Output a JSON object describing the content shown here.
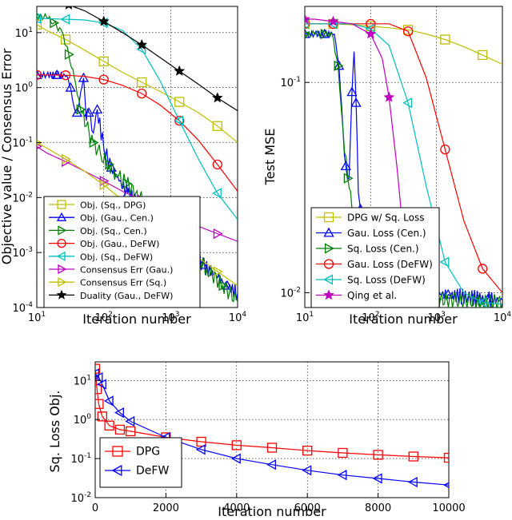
{
  "chart_data": [
    {
      "id": "objective",
      "type": "line",
      "xscale": "log",
      "yscale": "log",
      "xlim": [
        10,
        10000
      ],
      "ylim": [
        0.0001,
        30
      ],
      "xlabel": "Iteration number",
      "ylabel": "Objective value / Consensus Error",
      "xticks": [
        {
          "v": 10,
          "b": "10",
          "e": "1"
        },
        {
          "v": 100,
          "b": "10",
          "e": "2"
        },
        {
          "v": 1000,
          "b": "10",
          "e": "3"
        },
        {
          "v": 10000,
          "b": "10",
          "e": "4"
        }
      ],
      "yticks": [
        {
          "v": 0.0001,
          "b": "10",
          "e": "-4"
        },
        {
          "v": 0.001,
          "b": "10",
          "e": "-3"
        },
        {
          "v": 0.01,
          "b": "10",
          "e": "-2"
        },
        {
          "v": 0.1,
          "b": "10",
          "e": "-1"
        },
        {
          "v": 1,
          "b": "10",
          "e": "0"
        },
        {
          "v": 10,
          "b": "10",
          "e": "1"
        }
      ],
      "series": [
        {
          "name": "Obj. (Sq., DPG)",
          "color": "#bfbf00",
          "marker": "square",
          "x": [
            10,
            14,
            27,
            52,
            100,
            190,
            370,
            700,
            1350,
            2600,
            5000,
            10000
          ],
          "y": [
            14,
            11,
            7.5,
            4.8,
            3.0,
            1.9,
            1.25,
            0.85,
            0.55,
            0.35,
            0.2,
            0.1
          ]
        },
        {
          "name": "Obj. (Gau., Cen.)",
          "color": "#0000ff",
          "marker": "triangle-up",
          "noisy": true,
          "x": [
            10,
            14,
            20,
            28,
            32,
            36,
            40,
            45,
            50,
            55,
            60,
            70,
            80,
            100,
            130,
            170,
            230,
            300,
            400,
            550,
            750,
            1000,
            1500,
            2000,
            3000,
            5000,
            7000,
            10000
          ],
          "y": [
            1.7,
            1.7,
            1.7,
            1.65,
            1.0,
            0.45,
            0.35,
            0.8,
            1.5,
            0.25,
            0.35,
            0.15,
            0.4,
            0.08,
            0.035,
            0.02,
            0.012,
            0.008,
            0.006,
            0.004,
            0.003,
            0.002,
            0.0015,
            0.001,
            0.0006,
            0.00035,
            0.00025,
            0.00018
          ]
        },
        {
          "name": "Obj. (Sq., Cen.)",
          "color": "#007f00",
          "marker": "triangle-right",
          "noisy": true,
          "x": [
            10,
            14,
            18,
            24,
            30,
            38,
            45,
            55,
            70,
            90,
            120,
            160,
            220,
            300,
            420,
            600,
            900,
            1400,
            2200,
            3500,
            6000,
            10000
          ],
          "y": [
            20,
            19,
            15,
            10,
            4.0,
            1.2,
            0.4,
            0.2,
            0.1,
            0.06,
            0.04,
            0.025,
            0.018,
            0.012,
            0.008,
            0.005,
            0.003,
            0.0017,
            0.0009,
            0.0005,
            0.00025,
            0.00013
          ]
        },
        {
          "name": "Obj. (Gau., DeFW)",
          "color": "#ff0000",
          "marker": "circle",
          "x": [
            10,
            14,
            27,
            52,
            100,
            190,
            370,
            700,
            1350,
            2600,
            5000,
            10000
          ],
          "y": [
            1.7,
            1.7,
            1.68,
            1.6,
            1.4,
            1.1,
            0.78,
            0.48,
            0.25,
            0.11,
            0.04,
            0.013
          ]
        },
        {
          "name": "Obj. (Sq., DeFW)",
          "color": "#00bfbf",
          "marker": "triangle-left",
          "x": [
            10,
            14,
            27,
            52,
            100,
            190,
            370,
            700,
            1350,
            2600,
            5000,
            10000
          ],
          "y": [
            18,
            18,
            17.5,
            17,
            15,
            11,
            5.0,
            1.3,
            0.25,
            0.05,
            0.012,
            0.004
          ]
        },
        {
          "name": "Consensus Err (Gau.)",
          "color": "#bf00bf",
          "marker": "triangle-right",
          "x": [
            10,
            14,
            27,
            52,
            100,
            190,
            370,
            700,
            1350,
            2600,
            5000,
            10000
          ],
          "y": [
            0.085,
            0.065,
            0.045,
            0.03,
            0.02,
            0.013,
            0.009,
            0.006,
            0.004,
            0.003,
            0.0022,
            0.0016
          ]
        },
        {
          "name": "Consensus Err (Sq.)",
          "color": "#bfbf00",
          "marker": "triangle-right",
          "x": [
            10,
            14,
            27,
            52,
            100,
            190,
            370,
            700,
            1350,
            2600,
            5000,
            10000
          ],
          "y": [
            0.1,
            0.08,
            0.05,
            0.03,
            0.017,
            0.009,
            0.005,
            0.0028,
            0.0015,
            0.0008,
            0.00045,
            0.00025
          ]
        },
        {
          "name": "Duality (Gau., DeFW)",
          "color": "#000000",
          "marker": "star",
          "x": [
            30,
            52,
            100,
            190,
            370,
            700,
            1350,
            2600,
            5000,
            10000
          ],
          "y": [
            32,
            25,
            16,
            10,
            6.0,
            3.5,
            2.0,
            1.15,
            0.65,
            0.38
          ]
        }
      ]
    },
    {
      "id": "testmse",
      "type": "line",
      "xscale": "log",
      "yscale": "log",
      "xlim": [
        10,
        10000
      ],
      "ylim": [
        0.0085,
        0.23
      ],
      "xlabel": "Iteration number",
      "ylabel": "Test MSE",
      "xticks": [
        {
          "v": 10,
          "b": "10",
          "e": "1"
        },
        {
          "v": 100,
          "b": "10",
          "e": "2"
        },
        {
          "v": 1000,
          "b": "10",
          "e": "3"
        },
        {
          "v": 10000,
          "b": "10",
          "e": "4"
        }
      ],
      "yticks": [
        {
          "v": 0.01,
          "b": "10",
          "e": "-2"
        },
        {
          "v": 0.1,
          "b": "10",
          "e": "-1"
        }
      ],
      "series": [
        {
          "name": "DPG w/ Sq. Loss",
          "color": "#bfbf00",
          "marker": "square",
          "x": [
            10,
            14,
            27,
            52,
            100,
            190,
            370,
            700,
            1350,
            2600,
            5000,
            10000
          ],
          "y": [
            0.19,
            0.19,
            0.19,
            0.188,
            0.185,
            0.182,
            0.178,
            0.17,
            0.16,
            0.148,
            0.135,
            0.122
          ]
        },
        {
          "name": "Gau. Loss (Cen.)",
          "color": "#0000ff",
          "marker": "triangle-up",
          "noisy": true,
          "x": [
            10,
            14,
            20,
            28,
            33,
            38,
            42,
            47,
            52,
            56,
            60,
            65,
            70,
            80,
            100,
            130,
            170,
            230,
            300,
            400,
            600,
            900,
            1500,
            3000,
            6000,
            10000
          ],
          "y": [
            0.17,
            0.17,
            0.17,
            0.17,
            0.12,
            0.06,
            0.04,
            0.035,
            0.09,
            0.14,
            0.08,
            0.03,
            0.025,
            0.02,
            0.016,
            0.014,
            0.013,
            0.012,
            0.0115,
            0.011,
            0.0105,
            0.01,
            0.0098,
            0.0095,
            0.0093,
            0.0092
          ]
        },
        {
          "name": "Sq. Loss (Cen.)",
          "color": "#007f00",
          "marker": "triangle-right",
          "noisy": true,
          "x": [
            10,
            14,
            20,
            26,
            32,
            38,
            45,
            52,
            60,
            70,
            85,
            100,
            130,
            170,
            230,
            300,
            400,
            600,
            1000,
            2000,
            5000,
            10000
          ],
          "y": [
            0.17,
            0.17,
            0.17,
            0.17,
            0.12,
            0.06,
            0.035,
            0.025,
            0.02,
            0.016,
            0.014,
            0.012,
            0.011,
            0.0105,
            0.01,
            0.0098,
            0.0096,
            0.0094,
            0.0093,
            0.0092,
            0.0091,
            0.009
          ]
        },
        {
          "name": "Gau. Loss (DeFW)",
          "color": "#ff0000",
          "marker": "circle",
          "x": [
            10,
            14,
            27,
            52,
            100,
            190,
            370,
            700,
            1350,
            2600,
            5000,
            10000
          ],
          "y": [
            0.19,
            0.19,
            0.19,
            0.19,
            0.19,
            0.19,
            0.175,
            0.105,
            0.048,
            0.022,
            0.013,
            0.01
          ]
        },
        {
          "name": "Sq. Loss (DeFW)",
          "color": "#00bfbf",
          "marker": "triangle-left",
          "x": [
            10,
            14,
            27,
            52,
            100,
            190,
            370,
            700,
            1350,
            2600,
            5000,
            10000
          ],
          "y": [
            0.19,
            0.19,
            0.19,
            0.19,
            0.18,
            0.15,
            0.08,
            0.032,
            0.014,
            0.01,
            0.009,
            0.0088
          ]
        },
        {
          "name": "Qing et al.",
          "color": "#bf00bf",
          "marker": "star",
          "x": [
            10,
            14,
            27,
            52,
            100,
            150,
            190,
            250,
            300,
            370,
            420,
            480,
            550
          ],
          "y": [
            0.2,
            0.2,
            0.195,
            0.19,
            0.17,
            0.13,
            0.085,
            0.04,
            0.022,
            0.014,
            0.011,
            0.0095,
            0.009
          ]
        }
      ]
    },
    {
      "id": "sqloss",
      "type": "line",
      "xscale": "linear",
      "yscale": "log",
      "xlim": [
        0,
        10000
      ],
      "ylim": [
        0.01,
        30
      ],
      "xlabel": "Iteration number",
      "ylabel": "Sq. Loss Obj.",
      "xticks": [
        {
          "v": 0,
          "b": "0",
          "e": ""
        },
        {
          "v": 2000,
          "b": "2000",
          "e": ""
        },
        {
          "v": 4000,
          "b": "4000",
          "e": ""
        },
        {
          "v": 6000,
          "b": "6000",
          "e": ""
        },
        {
          "v": 8000,
          "b": "8000",
          "e": ""
        },
        {
          "v": 10000,
          "b": "10000",
          "e": ""
        }
      ],
      "yticks": [
        {
          "v": 0.01,
          "b": "10",
          "e": "-2"
        },
        {
          "v": 0.1,
          "b": "10",
          "e": "-1"
        },
        {
          "v": 1,
          "b": "10",
          "e": "0"
        },
        {
          "v": 10,
          "b": "10",
          "e": "1"
        }
      ],
      "series": [
        {
          "name": "DPG",
          "color": "#ff0000",
          "marker": "square",
          "x": [
            0,
            50,
            100,
            200,
            400,
            700,
            1000,
            2000,
            3000,
            4000,
            5000,
            6000,
            7000,
            8000,
            9000,
            10000
          ],
          "y": [
            20,
            6,
            2.5,
            1.2,
            0.7,
            0.55,
            0.5,
            0.35,
            0.27,
            0.22,
            0.19,
            0.16,
            0.14,
            0.125,
            0.113,
            0.105
          ]
        },
        {
          "name": "DeFW",
          "color": "#0000ff",
          "marker": "triangle-left",
          "x": [
            0,
            100,
            200,
            400,
            700,
            1000,
            2000,
            3000,
            4000,
            5000,
            6000,
            7000,
            8000,
            9000,
            10000
          ],
          "y": [
            15,
            12,
            8,
            3,
            1.5,
            0.9,
            0.35,
            0.17,
            0.1,
            0.07,
            0.05,
            0.038,
            0.031,
            0.025,
            0.021
          ]
        }
      ]
    }
  ]
}
